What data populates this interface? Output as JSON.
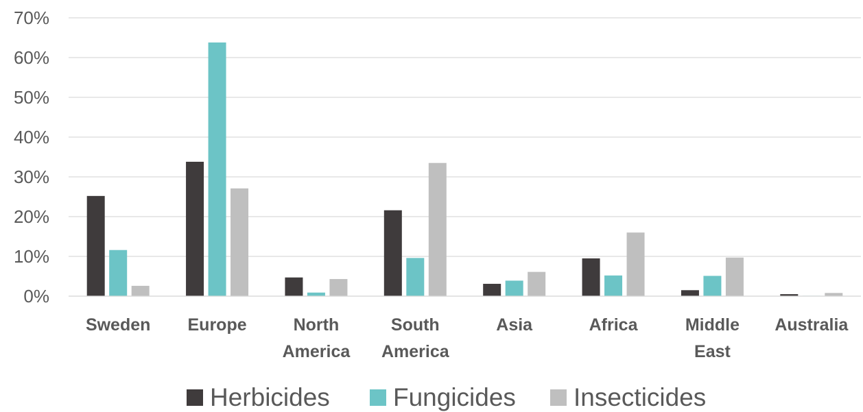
{
  "chart_data": {
    "type": "bar",
    "categories": [
      [
        "Sweden"
      ],
      [
        "Europe"
      ],
      [
        "North",
        "America"
      ],
      [
        "South",
        "America"
      ],
      [
        "Asia"
      ],
      [
        "Africa"
      ],
      [
        "Middle",
        "East"
      ],
      [
        "Australia"
      ]
    ],
    "series": [
      {
        "name": "Herbicides",
        "color": "#3f3b3c",
        "values": [
          25.2,
          33.8,
          4.7,
          21.6,
          3.1,
          9.5,
          1.5,
          0.5
        ]
      },
      {
        "name": "Fungicides",
        "color": "#6cc4c6",
        "values": [
          11.6,
          63.8,
          0.9,
          9.6,
          3.9,
          5.2,
          5.1,
          0.1
        ]
      },
      {
        "name": "Insecticides",
        "color": "#bfbfbf",
        "values": [
          2.6,
          27.1,
          4.3,
          33.5,
          6.1,
          16.0,
          9.7,
          0.8
        ]
      }
    ],
    "y_ticks": [
      "0%",
      "10%",
      "20%",
      "30%",
      "40%",
      "50%",
      "60%",
      "70%"
    ],
    "ylim": [
      0,
      70
    ],
    "grid": true,
    "legend_position": "bottom"
  }
}
